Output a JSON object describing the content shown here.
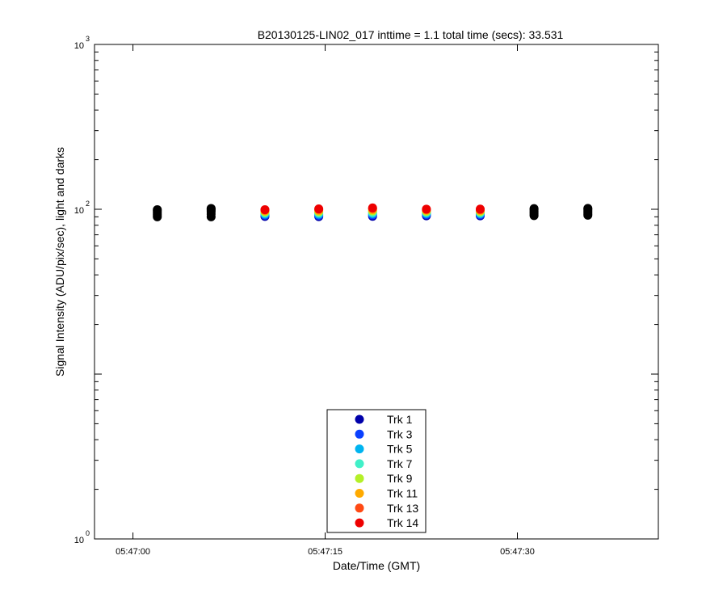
{
  "chart_data": {
    "type": "scatter",
    "title": "B20130125-LIN02_017 inttime = 1.1 total time (secs): 33.531",
    "xlabel": "Date/Time (GMT)",
    "ylabel": "Signal Intensity (ADU/pix/sec), light and darks",
    "y_scale": "log",
    "ylim": [
      1,
      1000
    ],
    "xlim": [
      "05:46:57",
      "05:47:41"
    ],
    "x_ticks": [
      "05:47:00",
      "05:47:15",
      "05:47:30"
    ],
    "y_ticks": [
      {
        "base": "10",
        "exp": "0",
        "value": 1
      },
      {
        "base": "10",
        "exp": "2",
        "value": 100
      },
      {
        "base": "10",
        "exp": "3",
        "value": 1000
      }
    ],
    "grid": false,
    "legend_position": "lower-center",
    "series": [
      {
        "name": "Trk 1",
        "color": "#0000aa",
        "x": [
          "05:47:10.3",
          "05:47:14.5",
          "05:47:18.7",
          "05:47:22.9",
          "05:47:27.1"
        ],
        "y": [
          90.5,
          90.2,
          90.6,
          91.2,
          91.2
        ]
      },
      {
        "name": "Trk 3",
        "color": "#0a40ff",
        "x": [
          "05:47:10.3",
          "05:47:14.5",
          "05:47:18.7",
          "05:47:22.9",
          "05:47:27.1"
        ],
        "y": [
          92.0,
          91.8,
          92.4,
          92.8,
          92.6
        ]
      },
      {
        "name": "Trk 5",
        "color": "#00b4f0",
        "x": [
          "05:47:10.3",
          "05:47:14.5",
          "05:47:18.7",
          "05:47:22.9",
          "05:47:27.1"
        ],
        "y": [
          93.5,
          93.3,
          94.1,
          94.2,
          94.0
        ]
      },
      {
        "name": "Trk 7",
        "color": "#40f0c8",
        "x": [
          "05:47:10.3",
          "05:47:14.5",
          "05:47:18.7",
          "05:47:22.9",
          "05:47:27.1"
        ],
        "y": [
          95.0,
          95.0,
          95.8,
          95.7,
          95.4
        ]
      },
      {
        "name": "Trk 9",
        "color": "#b4f028",
        "x": [
          "05:47:10.3",
          "05:47:14.5",
          "05:47:18.7",
          "05:47:22.9",
          "05:47:27.1"
        ],
        "y": [
          96.4,
          96.7,
          97.6,
          97.1,
          96.8
        ]
      },
      {
        "name": "Trk 11",
        "color": "#ffaa00",
        "x": [
          "05:47:10.3",
          "05:47:14.5",
          "05:47:18.7",
          "05:47:22.9",
          "05:47:27.1"
        ],
        "y": [
          97.8,
          98.4,
          99.5,
          98.6,
          98.3
        ]
      },
      {
        "name": "Trk 13",
        "color": "#ff4a14",
        "x": [
          "05:47:10.3",
          "05:47:14.5",
          "05:47:18.7",
          "05:47:22.9",
          "05:47:27.1"
        ],
        "y": [
          98.9,
          99.9,
          101.2,
          99.7,
          99.5
        ]
      },
      {
        "name": "Trk 14",
        "color": "#ee0000",
        "x": [
          "05:47:10.3",
          "05:47:14.5",
          "05:47:18.7",
          "05:47:22.9",
          "05:47:27.1"
        ],
        "y": [
          99.5,
          100.5,
          102.0,
          100.2,
          100.3
        ]
      }
    ],
    "dark_points": {
      "color": "#000000",
      "x": [
        "05:47:01.9",
        "05:47:06.1",
        "05:47:31.3",
        "05:47:35.5"
      ],
      "y_values": [
        [
          90.0,
          92.0,
          94.0,
          96.0,
          98.0,
          99.5
        ],
        [
          90.0,
          93.5,
          96.5,
          98.5,
          100.3,
          101.2
        ],
        [
          91.5,
          93.5,
          95.5,
          97.5,
          99.5,
          101.0
        ],
        [
          92.0,
          94.0,
          96.0,
          98.0,
          100.0,
          101.3
        ]
      ]
    }
  }
}
